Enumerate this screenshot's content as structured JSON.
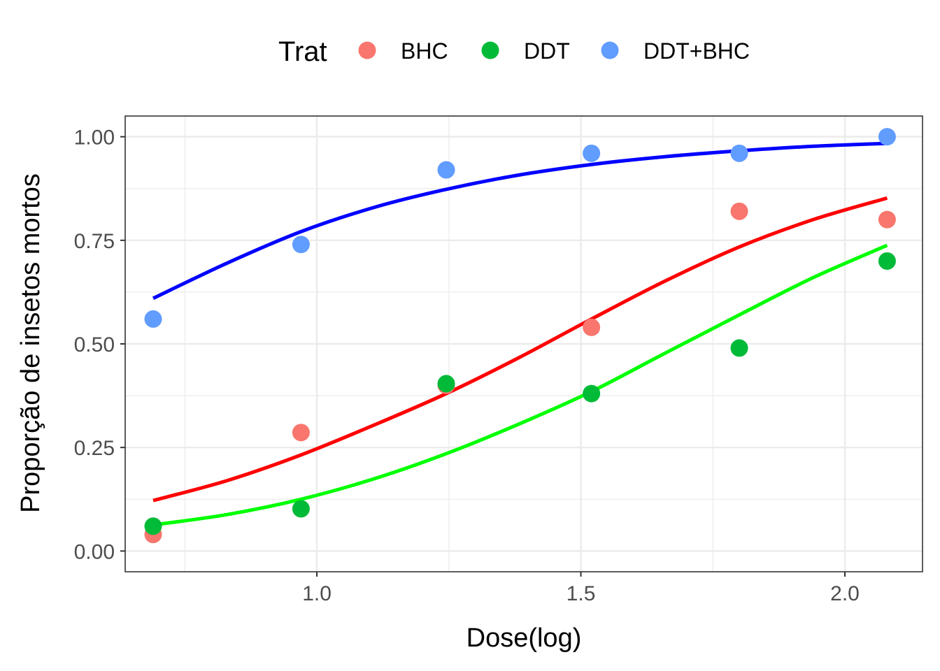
{
  "chart_data": {
    "type": "scatter",
    "xlabel": "Dose(log)",
    "ylabel": "Proporção de insetos mortos",
    "xlim": [
      0.637,
      2.147
    ],
    "ylim": [
      -0.05,
      1.05
    ],
    "x_ticks": [
      1.0,
      1.5,
      2.0
    ],
    "x_tick_labels": [
      "1.0",
      "1.5",
      "2.0"
    ],
    "y_ticks": [
      0.0,
      0.25,
      0.5,
      0.75,
      1.0
    ],
    "y_tick_labels": [
      "0.00",
      "0.25",
      "0.50",
      "0.75",
      "1.00"
    ],
    "grid": true,
    "legend": {
      "title": "Trat",
      "position": "top",
      "entries": [
        {
          "label": "BHC",
          "color": "#F8766D"
        },
        {
          "label": "DDT",
          "color": "#00BA38"
        },
        {
          "label": "DDT+BHC",
          "color": "#619CFF"
        }
      ]
    },
    "series": [
      {
        "name": "BHC",
        "color": "#F8766D",
        "points": [
          [
            0.69,
            0.04
          ],
          [
            0.97,
            0.286
          ],
          [
            1.245,
            0.4
          ],
          [
            1.52,
            0.54
          ],
          [
            1.8,
            0.82
          ],
          [
            2.08,
            0.8
          ]
        ],
        "fit_color": "#FF0000",
        "fit": [
          [
            0.69,
            0.122
          ],
          [
            0.83,
            0.17
          ],
          [
            0.97,
            0.232
          ],
          [
            1.11,
            0.305
          ],
          [
            1.245,
            0.38
          ],
          [
            1.38,
            0.465
          ],
          [
            1.52,
            0.56
          ],
          [
            1.66,
            0.652
          ],
          [
            1.8,
            0.734
          ],
          [
            1.94,
            0.8
          ],
          [
            2.08,
            0.852
          ]
        ]
      },
      {
        "name": "DDT",
        "color": "#00BA38",
        "points": [
          [
            0.69,
            0.06
          ],
          [
            0.97,
            0.102
          ],
          [
            1.245,
            0.404
          ],
          [
            1.52,
            0.38
          ],
          [
            1.8,
            0.49
          ],
          [
            2.08,
            0.7
          ]
        ],
        "fit_color": "#00FF00",
        "fit": [
          [
            0.69,
            0.063
          ],
          [
            0.83,
            0.088
          ],
          [
            0.97,
            0.125
          ],
          [
            1.11,
            0.175
          ],
          [
            1.245,
            0.235
          ],
          [
            1.38,
            0.305
          ],
          [
            1.52,
            0.385
          ],
          [
            1.66,
            0.478
          ],
          [
            1.8,
            0.57
          ],
          [
            1.94,
            0.66
          ],
          [
            2.08,
            0.738
          ]
        ]
      },
      {
        "name": "DDT+BHC",
        "color": "#619CFF",
        "points": [
          [
            0.69,
            0.56
          ],
          [
            0.97,
            0.74
          ],
          [
            1.245,
            0.92
          ],
          [
            1.52,
            0.96
          ],
          [
            1.8,
            0.96
          ],
          [
            2.08,
            1.0
          ]
        ],
        "fit_color": "#0000FF",
        "fit": [
          [
            0.69,
            0.61
          ],
          [
            0.83,
            0.695
          ],
          [
            0.97,
            0.771
          ],
          [
            1.11,
            0.83
          ],
          [
            1.245,
            0.873
          ],
          [
            1.38,
            0.907
          ],
          [
            1.52,
            0.933
          ],
          [
            1.66,
            0.952
          ],
          [
            1.8,
            0.966
          ],
          [
            1.94,
            0.977
          ],
          [
            2.08,
            0.984
          ]
        ]
      }
    ]
  }
}
